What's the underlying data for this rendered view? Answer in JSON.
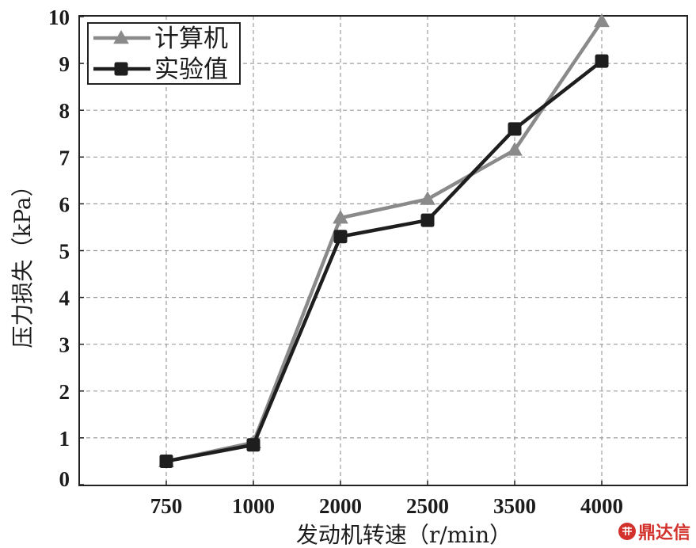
{
  "chart_data": {
    "type": "line",
    "categories": [
      "750",
      "1000",
      "2000",
      "2500",
      "3500",
      "4000"
    ],
    "series": [
      {
        "name": "计算机",
        "values": [
          0.5,
          0.9,
          5.7,
          6.1,
          7.15,
          9.9
        ],
        "color": "#8a8a8a",
        "marker": "triangle"
      },
      {
        "name": "实验值",
        "values": [
          0.5,
          0.85,
          5.3,
          5.65,
          7.6,
          9.05
        ],
        "color": "#1e1e1e",
        "marker": "square"
      }
    ],
    "xlabel": "发动机转速（r/min）",
    "ylabel": "压力损失（kPa）",
    "ylim": [
      0,
      10
    ],
    "yticks": [
      0,
      1,
      2,
      3,
      4,
      5,
      6,
      7,
      8,
      9,
      10
    ],
    "grid": true,
    "legend": "top-left"
  },
  "watermark": {
    "text": "鼎达信",
    "color": "#d2312c"
  }
}
